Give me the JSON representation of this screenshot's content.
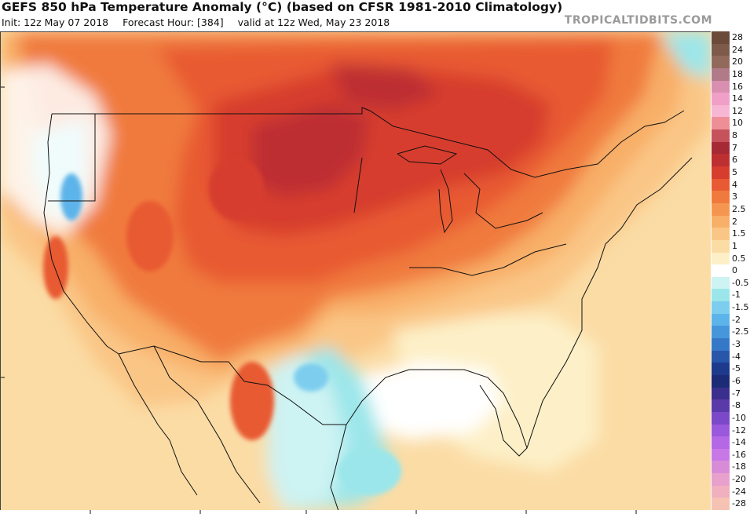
{
  "header": {
    "title": "GEFS 850 hPa Temperature Anomaly (°C) (based on CFSR 1981-2010 Climatology)",
    "init": "Init: 12z May 07 2018",
    "forecast_hour": "Forecast Hour: [384]",
    "valid": "valid at 12z Wed, May 23 2018",
    "brand": "TROPICALTIDBITS.COM"
  },
  "legend": {
    "items": [
      {
        "label": "28",
        "color": "#6b4a3a"
      },
      {
        "label": "24",
        "color": "#7d5a4a"
      },
      {
        "label": "20",
        "color": "#916a5c"
      },
      {
        "label": "18",
        "color": "#b07a88"
      },
      {
        "label": "16",
        "color": "#d98fb0"
      },
      {
        "label": "14",
        "color": "#f0a0c8"
      },
      {
        "label": "12",
        "color": "#f7b6d4"
      },
      {
        "label": "10",
        "color": "#ee8f97"
      },
      {
        "label": "8",
        "color": "#c6525c"
      },
      {
        "label": "7",
        "color": "#a52a35"
      },
      {
        "label": "6",
        "color": "#bd2f30"
      },
      {
        "label": "5",
        "color": "#d73d2e"
      },
      {
        "label": "4",
        "color": "#e85a33"
      },
      {
        "label": "3",
        "color": "#f07a3e"
      },
      {
        "label": "2.5",
        "color": "#f59650"
      },
      {
        "label": "2",
        "color": "#f8af68"
      },
      {
        "label": "1.5",
        "color": "#fac686"
      },
      {
        "label": "1",
        "color": "#fbdca5"
      },
      {
        "label": "0.5",
        "color": "#fdf0c8"
      },
      {
        "label": "0",
        "color": "#ffffff"
      },
      {
        "label": "-0.5",
        "color": "#cdf3f3"
      },
      {
        "label": "-1",
        "color": "#9be6ea"
      },
      {
        "label": "-1.5",
        "color": "#7dcdee"
      },
      {
        "label": "-2",
        "color": "#5db4ea"
      },
      {
        "label": "-2.5",
        "color": "#4696dc"
      },
      {
        "label": "-3",
        "color": "#3678c8"
      },
      {
        "label": "-4",
        "color": "#2856a8"
      },
      {
        "label": "-5",
        "color": "#1d3a8c"
      },
      {
        "label": "-6",
        "color": "#1c2b76"
      },
      {
        "label": "-7",
        "color": "#3a2f8c"
      },
      {
        "label": "-8",
        "color": "#5a3aa8"
      },
      {
        "label": "-10",
        "color": "#7a48c8"
      },
      {
        "label": "-12",
        "color": "#9a58dc"
      },
      {
        "label": "-14",
        "color": "#b468e6"
      },
      {
        "label": "-16",
        "color": "#c878e6"
      },
      {
        "label": "-18",
        "color": "#d88cd8"
      },
      {
        "label": "-20",
        "color": "#e8a0cc"
      },
      {
        "label": "-24",
        "color": "#f0b0bf"
      },
      {
        "label": "-28",
        "color": "#f6c2b4"
      }
    ]
  },
  "map": {
    "region": "Continental United States",
    "colors": {
      "warm_1": "#fbdca5",
      "warm_1_5": "#fac686",
      "warm_2": "#f8af68",
      "warm_2_5": "#f59650",
      "warm_3": "#f07a3e",
      "warm_4": "#e85a33",
      "warm_5": "#d73d2e",
      "warm_6": "#bd2f30",
      "neutral": "#fdf0c8",
      "zero": "#ffffff",
      "cool_05": "#cdf3f3",
      "cool_1": "#9be6ea",
      "cool_15": "#7dcdee",
      "cool_2": "#5db4ea",
      "cool_25": "#4696dc"
    }
  }
}
